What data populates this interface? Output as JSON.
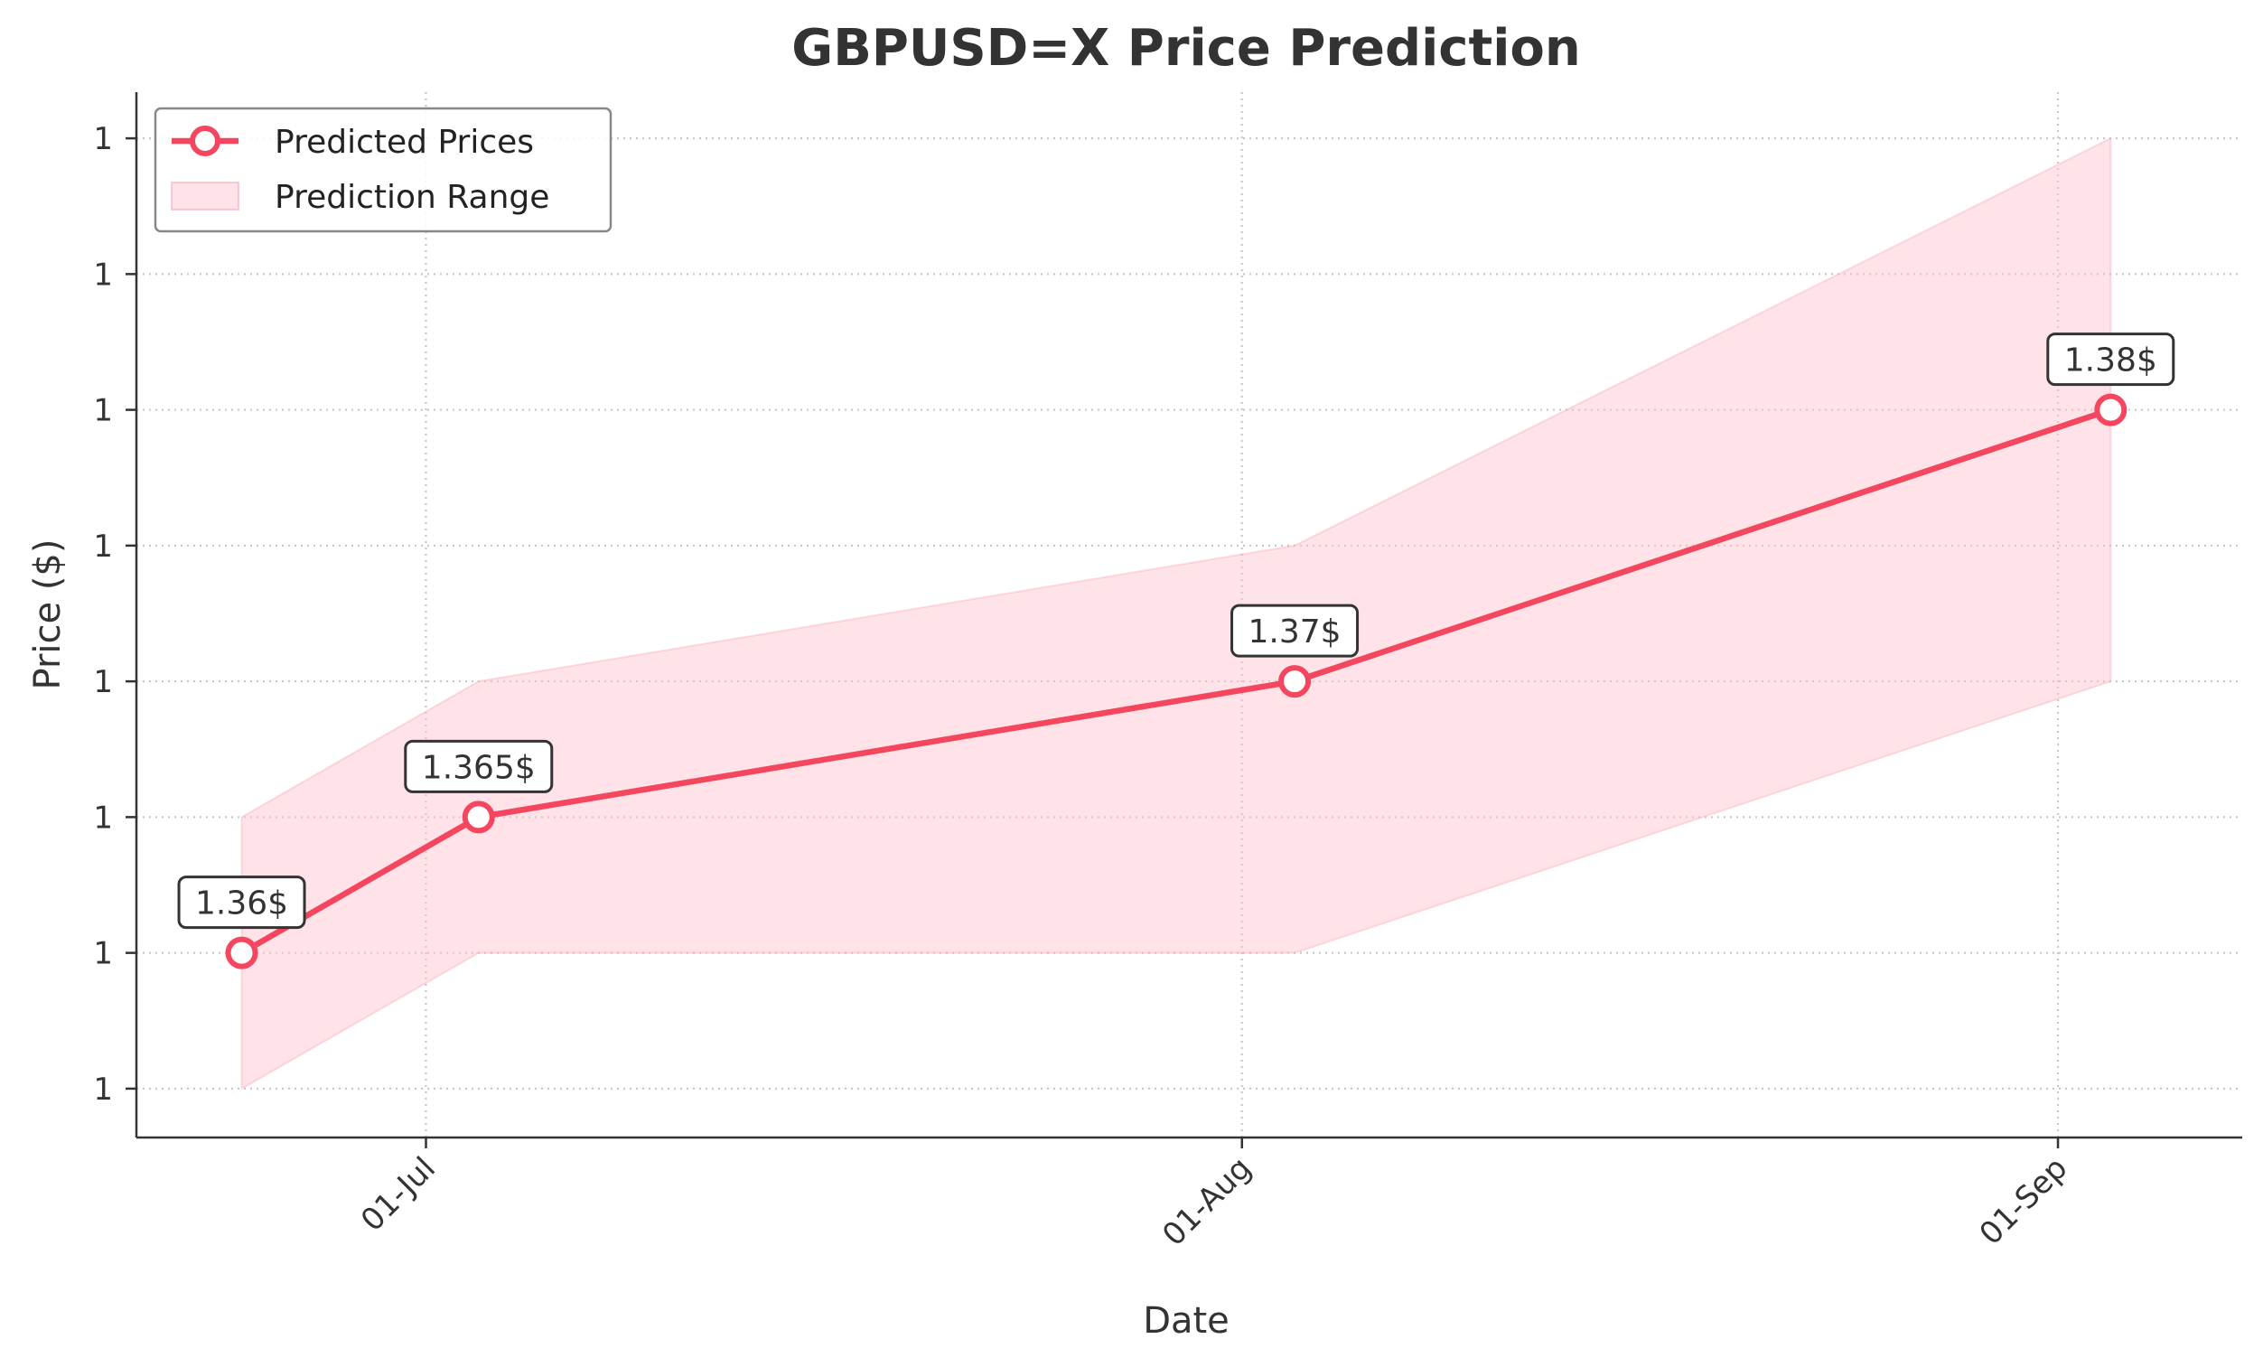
{
  "chart_data": {
    "type": "line",
    "title": "GBPUSD=X Price Prediction",
    "xlabel": "Date",
    "ylabel": "Price ($)",
    "x": [
      "2025-06-24",
      "2025-07-03",
      "2025-08-03",
      "2025-09-03"
    ],
    "series": [
      {
        "name": "Predicted Prices",
        "color": "#f4465f",
        "values": [
          1.36,
          1.365,
          1.37,
          1.38
        ],
        "annotations": [
          "1.36$",
          "1.365$",
          "1.37$",
          "1.38$"
        ]
      }
    ],
    "range": {
      "name": "Prediction Range",
      "color": "#ffc0cb",
      "lower": [
        1.355,
        1.36,
        1.36,
        1.37
      ],
      "upper": [
        1.365,
        1.37,
        1.375,
        1.39
      ]
    },
    "xlim": [
      "2025-06-20",
      "2025-09-08"
    ],
    "ylim": [
      1.3532,
      1.3917
    ],
    "x_ticks": [
      {
        "date": "2025-07-01",
        "label": "01-Jul"
      },
      {
        "date": "2025-08-01",
        "label": "01-Aug"
      },
      {
        "date": "2025-09-01",
        "label": "01-Sep"
      }
    ],
    "y_ticks": [
      {
        "value": 1.355,
        "label": "1"
      },
      {
        "value": 1.36,
        "label": "1"
      },
      {
        "value": 1.365,
        "label": "1"
      },
      {
        "value": 1.37,
        "label": "1"
      },
      {
        "value": 1.375,
        "label": "1"
      },
      {
        "value": 1.38,
        "label": "1"
      },
      {
        "value": 1.385,
        "label": "1"
      },
      {
        "value": 1.39,
        "label": "1"
      }
    ],
    "grid": true,
    "legend_position": "top-left"
  }
}
